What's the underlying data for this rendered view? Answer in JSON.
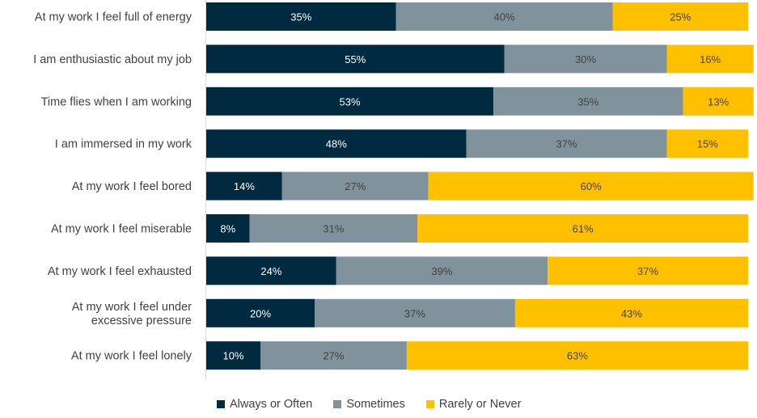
{
  "chart_data": {
    "type": "bar",
    "orientation": "horizontal",
    "stacked": true,
    "percent_stacked": true,
    "title": "",
    "xlabel": "",
    "ylabel": "",
    "xlim": [
      0,
      100
    ],
    "grid": false,
    "legend_position": "bottom",
    "categories": [
      [
        "At my work I feel full of energy"
      ],
      [
        "I am enthusiastic about my job"
      ],
      [
        "Time flies when I am working"
      ],
      [
        "I am immersed in my work"
      ],
      [
        "At my work I feel bored"
      ],
      [
        "At my work I feel miserable"
      ],
      [
        "At my work I feel exhausted"
      ],
      [
        "At my work I feel under",
        "excessive pressure"
      ],
      [
        "At my work I feel lonely"
      ]
    ],
    "series": [
      {
        "name": "Always or Often",
        "color": "#002A3F",
        "label_color": "#FFFFFF",
        "values": [
          35,
          55,
          53,
          48,
          14,
          8,
          24,
          20,
          10
        ]
      },
      {
        "name": "Sometimes",
        "color": "#80939C",
        "label_color": "#404040",
        "values": [
          40,
          30,
          35,
          37,
          27,
          31,
          39,
          37,
          27
        ]
      },
      {
        "name": "Rarely or Never",
        "color": "#FFC000",
        "label_color": "#404040",
        "values": [
          25,
          16,
          13,
          15,
          60,
          61,
          37,
          43,
          63
        ]
      }
    ],
    "value_suffix": "%"
  }
}
